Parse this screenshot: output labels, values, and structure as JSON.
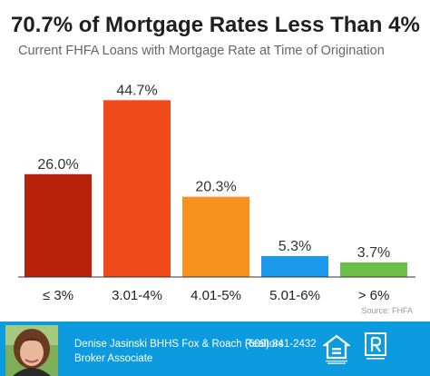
{
  "header": {
    "title": "70.7% of Mortgage Rates Less Than 4%",
    "subtitle": "Current FHFA Loans with Mortgage Rate at Time of Origination"
  },
  "chart_data": {
    "type": "bar",
    "title": "70.7% of Mortgage Rates Less Than 4%",
    "subtitle": "Current FHFA Loans with Mortgage Rate at Time of Origination",
    "categories": [
      "≤ 3%",
      "3.01-4%",
      "4.01-5%",
      "5.01-6%",
      "> 6%"
    ],
    "values": [
      26.0,
      44.7,
      20.3,
      5.3,
      3.7
    ],
    "data_labels": [
      "26.0%",
      "44.7%",
      "20.3%",
      "5.3%",
      "3.7%"
    ],
    "colors": [
      "#b8220a",
      "#f04a1a",
      "#f8921e",
      "#1a9ae8",
      "#6cc04a"
    ],
    "xlabel": "",
    "ylabel": "",
    "ylim": [
      0,
      45
    ],
    "grid": false,
    "source": "Source: FHFA"
  },
  "footer": {
    "agent_name": "Denise Jasinski BHHS Fox & Roach Realtors",
    "agent_role": "Broker Associate",
    "phone": "(609) 841-2432",
    "background_color": "#0d9be0",
    "icons": [
      "avatar-photo",
      "equal-housing-opportunity-icon",
      "realtor-icon"
    ]
  }
}
